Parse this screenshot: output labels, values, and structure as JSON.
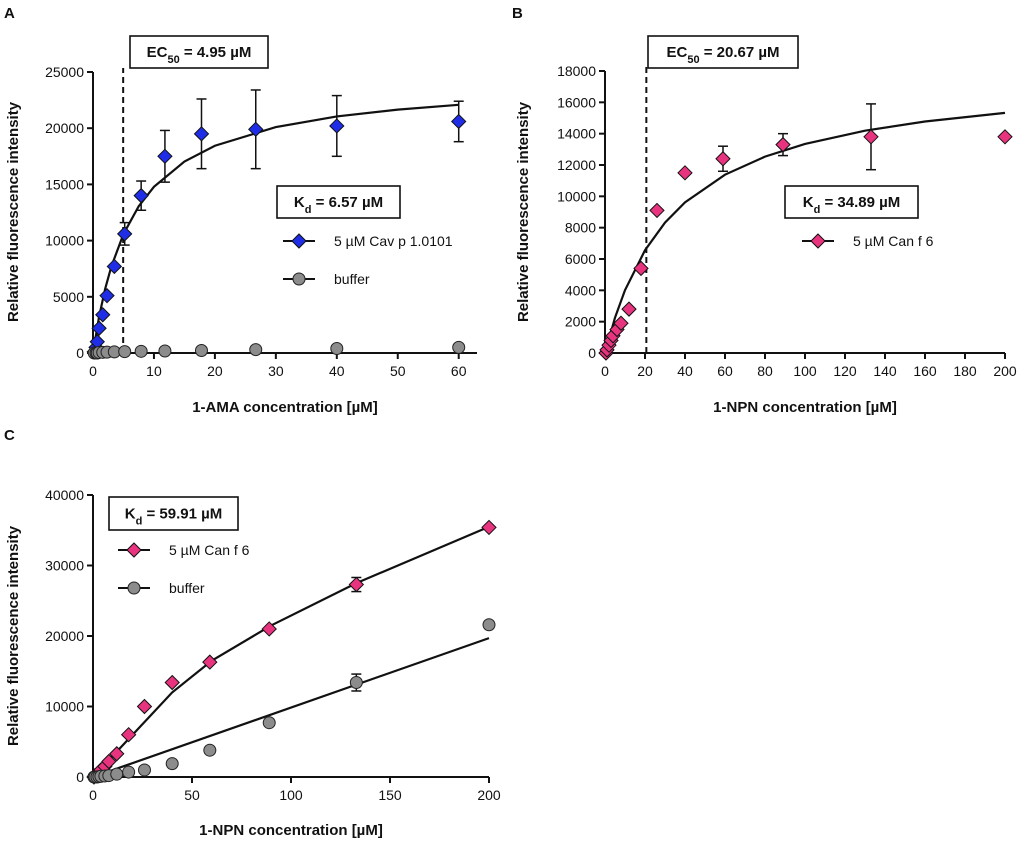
{
  "chart_data": [
    {
      "type": "scatter",
      "panel": "A",
      "xlabel": "1-AMA concentration [µM]",
      "ylabel": "Relative fluorescence intensity",
      "xlim": [
        0,
        63
      ],
      "ylim": [
        0,
        25000
      ],
      "xticks": [
        0,
        10,
        20,
        30,
        40,
        50,
        60
      ],
      "yticks": [
        0,
        5000,
        10000,
        15000,
        20000,
        25000
      ],
      "series": [
        {
          "name": "5 µM Cav p 1.0101",
          "marker": "diamond",
          "color": "#1f2ee6",
          "x": [
            0.2,
            0.5,
            0.7,
            1.0,
            1.6,
            2.3,
            3.5,
            5.2,
            7.9,
            11.8,
            17.8,
            26.7,
            40,
            60
          ],
          "values": [
            100,
            500,
            1000,
            2200,
            3400,
            5100,
            7700,
            10600,
            14000,
            17500,
            19500,
            19900,
            20200,
            20600
          ],
          "errors": [
            null,
            null,
            null,
            null,
            null,
            null,
            null,
            1000,
            1300,
            2300,
            3100,
            3500,
            2700,
            1800
          ]
        },
        {
          "name": "buffer",
          "marker": "circle",
          "color": "#8c8c8c",
          "x": [
            0.2,
            0.5,
            0.7,
            1.0,
            1.6,
            2.3,
            3.5,
            5.2,
            7.9,
            11.8,
            17.8,
            26.7,
            40,
            60
          ],
          "values": [
            0,
            0,
            0,
            50,
            60,
            80,
            100,
            120,
            150,
            180,
            220,
            300,
            400,
            500
          ],
          "errors": [
            null,
            null,
            null,
            null,
            null,
            null,
            null,
            null,
            null,
            null,
            null,
            null,
            null,
            null
          ]
        }
      ],
      "fits": [
        {
          "x": [
            0,
            1,
            2,
            3,
            5,
            7.5,
            10,
            15,
            20,
            30,
            40,
            50,
            60
          ],
          "values": [
            0,
            3236,
            5718,
            7680,
            10588,
            13060,
            14786,
            17038,
            18442,
            20098,
            21044,
            21655,
            22082
          ]
        }
      ],
      "ec50": {
        "main": "EC",
        "sub": "50",
        "rest": " = 4.95 µM",
        "x": 4.95
      },
      "kd": {
        "main": "K",
        "sub": "d",
        "rest": " = 6.57 µM"
      }
    },
    {
      "type": "scatter",
      "panel": "B",
      "xlabel": "1-NPN concentration [µM]",
      "ylabel": "Relative fluorescence intensity",
      "xlim": [
        0,
        200
      ],
      "ylim": [
        0,
        18000
      ],
      "xticks": [
        0,
        20,
        40,
        60,
        80,
        100,
        120,
        140,
        160,
        180,
        200
      ],
      "yticks": [
        0,
        2000,
        4000,
        6000,
        8000,
        10000,
        12000,
        14000,
        16000,
        18000
      ],
      "series": [
        {
          "name": "5 µM Can f 6",
          "marker": "diamond",
          "color": "#e8347f",
          "x": [
            0.5,
            1,
            2,
            3,
            4,
            6,
            8,
            12,
            18,
            26,
            40,
            59,
            89,
            133,
            200
          ],
          "values": [
            0,
            200,
            500,
            800,
            1100,
            1500,
            1900,
            2800,
            5400,
            9100,
            11500,
            12400,
            13300,
            13800,
            13800
          ],
          "errors": [
            null,
            null,
            null,
            null,
            null,
            null,
            null,
            null,
            null,
            null,
            null,
            800,
            700,
            2100,
            null
          ]
        }
      ],
      "fits": [
        {
          "x": [
            0,
            5,
            10,
            20,
            30,
            40,
            60,
            80,
            100,
            130,
            160,
            200
          ],
          "values": [
            0,
            2256,
            4010,
            6559,
            8322,
            9614,
            11382,
            12534,
            13344,
            14191,
            14778,
            15326
          ]
        }
      ],
      "ec50": {
        "main": "EC",
        "sub": "50",
        "rest": " = 20.67 µM",
        "x": 20.67
      },
      "kd": {
        "main": "K",
        "sub": "d",
        "rest": " = 34.89 µM"
      }
    },
    {
      "type": "scatter",
      "panel": "C",
      "xlabel": "1-NPN concentration [µM]",
      "ylabel": "Relative fluorescence intensity",
      "xlim": [
        0,
        200
      ],
      "ylim": [
        0,
        40000
      ],
      "xticks": [
        0,
        50,
        100,
        150,
        200
      ],
      "yticks": [
        0,
        10000,
        20000,
        30000,
        40000
      ],
      "series": [
        {
          "name": "5 µM Can f 6",
          "marker": "diamond",
          "color": "#e8347f",
          "x": [
            0.5,
            1,
            2,
            3,
            4,
            6,
            8,
            12,
            18,
            26,
            40,
            59,
            89,
            133,
            200
          ],
          "values": [
            0,
            200,
            400,
            700,
            1000,
            1500,
            2200,
            3300,
            6000,
            10000,
            13400,
            16300,
            21000,
            27300,
            35400
          ],
          "errors": [
            null,
            null,
            null,
            null,
            null,
            null,
            null,
            null,
            null,
            null,
            null,
            null,
            null,
            1000,
            null
          ]
        },
        {
          "name": "buffer",
          "marker": "circle",
          "color": "#8c8c8c",
          "x": [
            0.5,
            1,
            2,
            3,
            4,
            6,
            8,
            12,
            18,
            26,
            40,
            59,
            89,
            133,
            200
          ],
          "values": [
            0,
            0,
            0,
            50,
            100,
            150,
            200,
            400,
            700,
            1000,
            1900,
            3800,
            7700,
            13400,
            21600
          ],
          "errors": [
            null,
            null,
            null,
            null,
            null,
            null,
            null,
            null,
            null,
            null,
            null,
            null,
            null,
            1200,
            null
          ]
        }
      ],
      "fits": [
        {
          "x": [
            0,
            20,
            40,
            60,
            90,
            133,
            200
          ],
          "values": [
            0,
            6000,
            12000,
            16500,
            21500,
            27500,
            35500
          ]
        },
        {
          "x": [
            0,
            200
          ],
          "values": [
            0,
            19700
          ]
        }
      ],
      "kd": {
        "main": "K",
        "sub": "d",
        "rest": " = 59.91 µM"
      }
    }
  ]
}
